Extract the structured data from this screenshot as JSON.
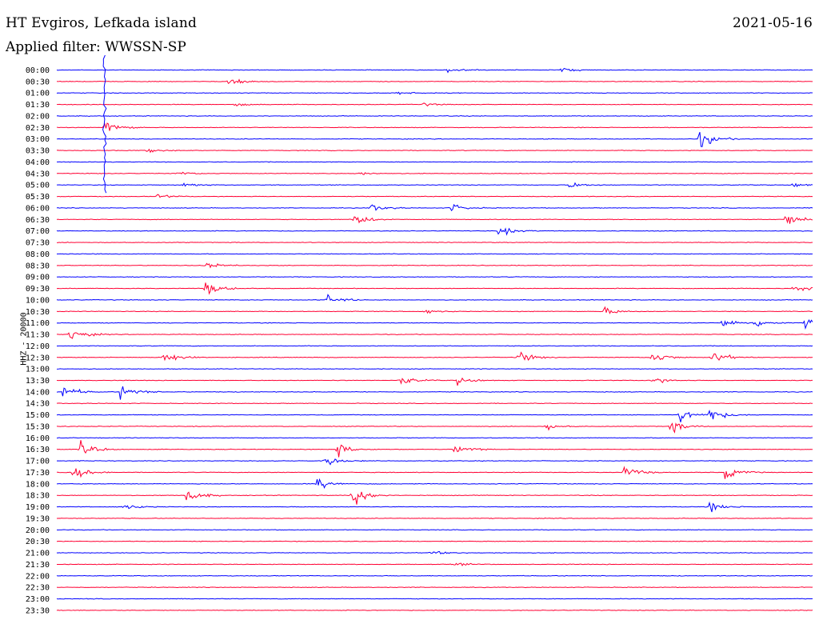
{
  "header": {
    "station": "HT Evgiros, Lefkada island",
    "date": "2021-05-16",
    "filter_text": "Applied filter: WWSSN-SP"
  },
  "chart_data": {
    "type": "line",
    "subtype": "helicorder",
    "ylabel": "HHZ - 20000",
    "ticks": [
      "00:00",
      "00:30",
      "01:00",
      "01:30",
      "02:00",
      "02:30",
      "03:00",
      "03:30",
      "04:00",
      "04:30",
      "05:00",
      "05:30",
      "06:00",
      "06:30",
      "07:00",
      "07:30",
      "08:00",
      "08:30",
      "09:00",
      "09:30",
      "10:00",
      "10:30",
      "11:00",
      "11:30",
      "12:00",
      "12:30",
      "13:00",
      "13:30",
      "14:00",
      "14:30",
      "15:00",
      "15:30",
      "16:00",
      "16:30",
      "17:00",
      "17:30",
      "18:00",
      "18:30",
      "19:00",
      "19:30",
      "20:00",
      "20:30",
      "21:00",
      "21:30",
      "22:00",
      "22:30",
      "23:00",
      "23:30"
    ],
    "trace_minutes": 30,
    "colors": [
      "#0000ff",
      "#ff0033"
    ],
    "amplitude_unit": "relative",
    "events": [
      {
        "trace": "00:00",
        "minute": 15.5,
        "amp": 0.6
      },
      {
        "trace": "00:00",
        "minute": 20.0,
        "amp": 0.5
      },
      {
        "trace": "00:00",
        "minute": 1.9,
        "amp": 5.5,
        "big": true
      },
      {
        "trace": "00:30",
        "minute": 6.8,
        "amp": 0.9
      },
      {
        "trace": "01:00",
        "minute": 13.5,
        "amp": 0.3
      },
      {
        "trace": "01:30",
        "minute": 7.0,
        "amp": 0.3
      },
      {
        "trace": "01:30",
        "minute": 14.5,
        "amp": 0.3
      },
      {
        "trace": "02:30",
        "minute": 1.9,
        "amp": 1.5
      },
      {
        "trace": "03:00",
        "minute": 25.5,
        "amp": 1.8
      },
      {
        "trace": "03:30",
        "minute": 3.6,
        "amp": 0.4
      },
      {
        "trace": "04:30",
        "minute": 4.8,
        "amp": 0.4
      },
      {
        "trace": "04:30",
        "minute": 11.8,
        "amp": 0.4
      },
      {
        "trace": "05:00",
        "minute": 5.0,
        "amp": 0.5
      },
      {
        "trace": "05:00",
        "minute": 20.3,
        "amp": 0.7
      },
      {
        "trace": "05:00",
        "minute": 29.2,
        "amp": 0.5
      },
      {
        "trace": "05:30",
        "minute": 4.0,
        "amp": 0.4
      },
      {
        "trace": "06:00",
        "minute": 12.4,
        "amp": 0.8
      },
      {
        "trace": "06:00",
        "minute": 15.6,
        "amp": 0.9
      },
      {
        "trace": "06:30",
        "minute": 11.8,
        "amp": 1.2
      },
      {
        "trace": "06:30",
        "minute": 28.9,
        "amp": 1.4
      },
      {
        "trace": "07:00",
        "minute": 17.5,
        "amp": 1.0
      },
      {
        "trace": "08:30",
        "minute": 5.8,
        "amp": 1.0
      },
      {
        "trace": "09:30",
        "minute": 5.9,
        "amp": 1.4
      },
      {
        "trace": "09:30",
        "minute": 29.2,
        "amp": 0.8
      },
      {
        "trace": "10:00",
        "minute": 10.7,
        "amp": 1.0
      },
      {
        "trace": "10:30",
        "minute": 14.6,
        "amp": 0.4
      },
      {
        "trace": "10:30",
        "minute": 21.7,
        "amp": 0.8
      },
      {
        "trace": "11:00",
        "minute": 26.4,
        "amp": 1.0
      },
      {
        "trace": "11:00",
        "minute": 27.6,
        "amp": 1.0
      },
      {
        "trace": "11:00",
        "minute": 29.7,
        "amp": 1.0
      },
      {
        "trace": "11:30",
        "minute": 0.5,
        "amp": 1.3
      },
      {
        "trace": "12:30",
        "minute": 4.2,
        "amp": 1.3
      },
      {
        "trace": "12:30",
        "minute": 18.3,
        "amp": 1.2
      },
      {
        "trace": "12:30",
        "minute": 23.6,
        "amp": 1.3
      },
      {
        "trace": "12:30",
        "minute": 26.0,
        "amp": 1.3
      },
      {
        "trace": "13:30",
        "minute": 13.6,
        "amp": 1.0
      },
      {
        "trace": "13:30",
        "minute": 15.9,
        "amp": 0.8
      },
      {
        "trace": "13:30",
        "minute": 23.6,
        "amp": 0.8
      },
      {
        "trace": "14:00",
        "minute": 0.2,
        "amp": 1.4
      },
      {
        "trace": "14:00",
        "minute": 2.5,
        "amp": 1.4
      },
      {
        "trace": "15:00",
        "minute": 24.7,
        "amp": 1.4
      },
      {
        "trace": "15:00",
        "minute": 25.9,
        "amp": 1.4
      },
      {
        "trace": "15:30",
        "minute": 19.4,
        "amp": 0.6
      },
      {
        "trace": "15:30",
        "minute": 24.3,
        "amp": 1.3
      },
      {
        "trace": "16:30",
        "minute": 0.9,
        "amp": 1.4
      },
      {
        "trace": "16:30",
        "minute": 11.1,
        "amp": 1.3
      },
      {
        "trace": "16:30",
        "minute": 15.8,
        "amp": 1.2
      },
      {
        "trace": "17:00",
        "minute": 10.6,
        "amp": 1.2
      },
      {
        "trace": "17:30",
        "minute": 0.6,
        "amp": 1.4
      },
      {
        "trace": "17:30",
        "minute": 22.5,
        "amp": 1.4
      },
      {
        "trace": "17:30",
        "minute": 26.5,
        "amp": 1.4
      },
      {
        "trace": "18:00",
        "minute": 10.3,
        "amp": 1.2
      },
      {
        "trace": "18:30",
        "minute": 5.1,
        "amp": 1.5
      },
      {
        "trace": "18:30",
        "minute": 11.7,
        "amp": 2.4
      },
      {
        "trace": "19:00",
        "minute": 2.6,
        "amp": 0.6
      },
      {
        "trace": "19:00",
        "minute": 25.9,
        "amp": 0.9
      },
      {
        "trace": "21:00",
        "minute": 14.8,
        "amp": 0.4
      },
      {
        "trace": "21:30",
        "minute": 15.8,
        "amp": 0.3
      }
    ]
  }
}
